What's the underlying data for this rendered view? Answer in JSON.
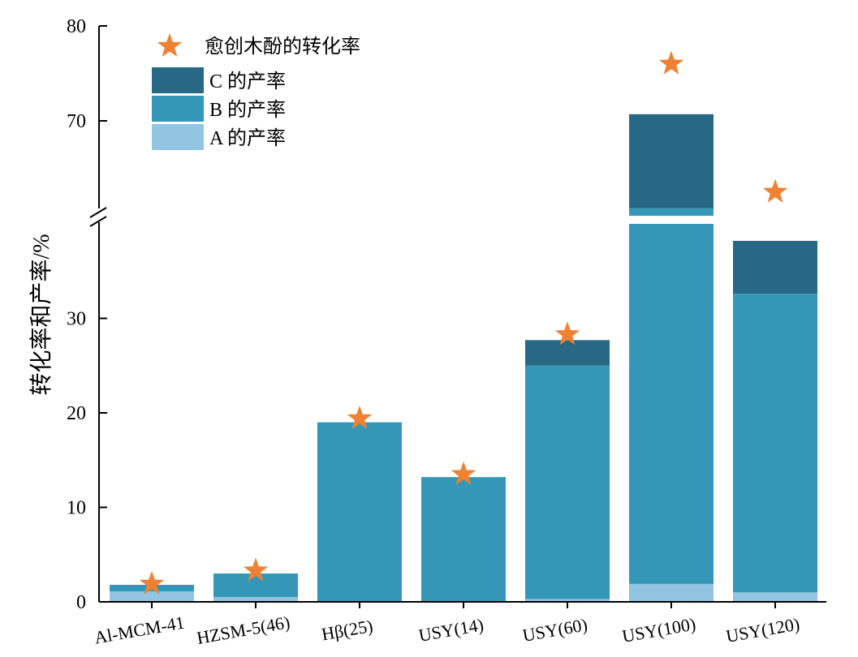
{
  "chart_data": {
    "type": "bar",
    "stacked": true,
    "broken_axis": true,
    "ylabel": "转化率和产率/%",
    "xlabel": "",
    "categories": [
      "Al-MCM-41",
      "HZSM-5(46)",
      "Hβ(25)",
      "USY(14)",
      "USY(60)",
      "USY(100)",
      "USY(120)"
    ],
    "y_ticks": [
      "0",
      "10",
      "20",
      "30",
      "70",
      "80"
    ],
    "series": [
      {
        "name": "A 的产率",
        "color": "#93c4e2",
        "values": [
          1.1,
          0.5,
          0.0,
          0.0,
          0.3,
          1.9,
          1.0
        ]
      },
      {
        "name": "B 的产率",
        "color": "#3597b7",
        "values": [
          0.7,
          2.5,
          19.0,
          13.2,
          24.7,
          58.9,
          31.6
        ]
      },
      {
        "name": "C 的产率",
        "color": "#276884",
        "values": [
          0.0,
          0.0,
          0.0,
          0.0,
          2.7,
          9.9,
          5.6
        ]
      }
    ],
    "markers": {
      "name": "愈创木酚的转化率",
      "color": "#ef8132",
      "values": [
        1.9,
        3.3,
        19.4,
        13.5,
        28.3,
        76.0,
        62.5
      ]
    },
    "legend_position": "top-left",
    "grid": false
  }
}
